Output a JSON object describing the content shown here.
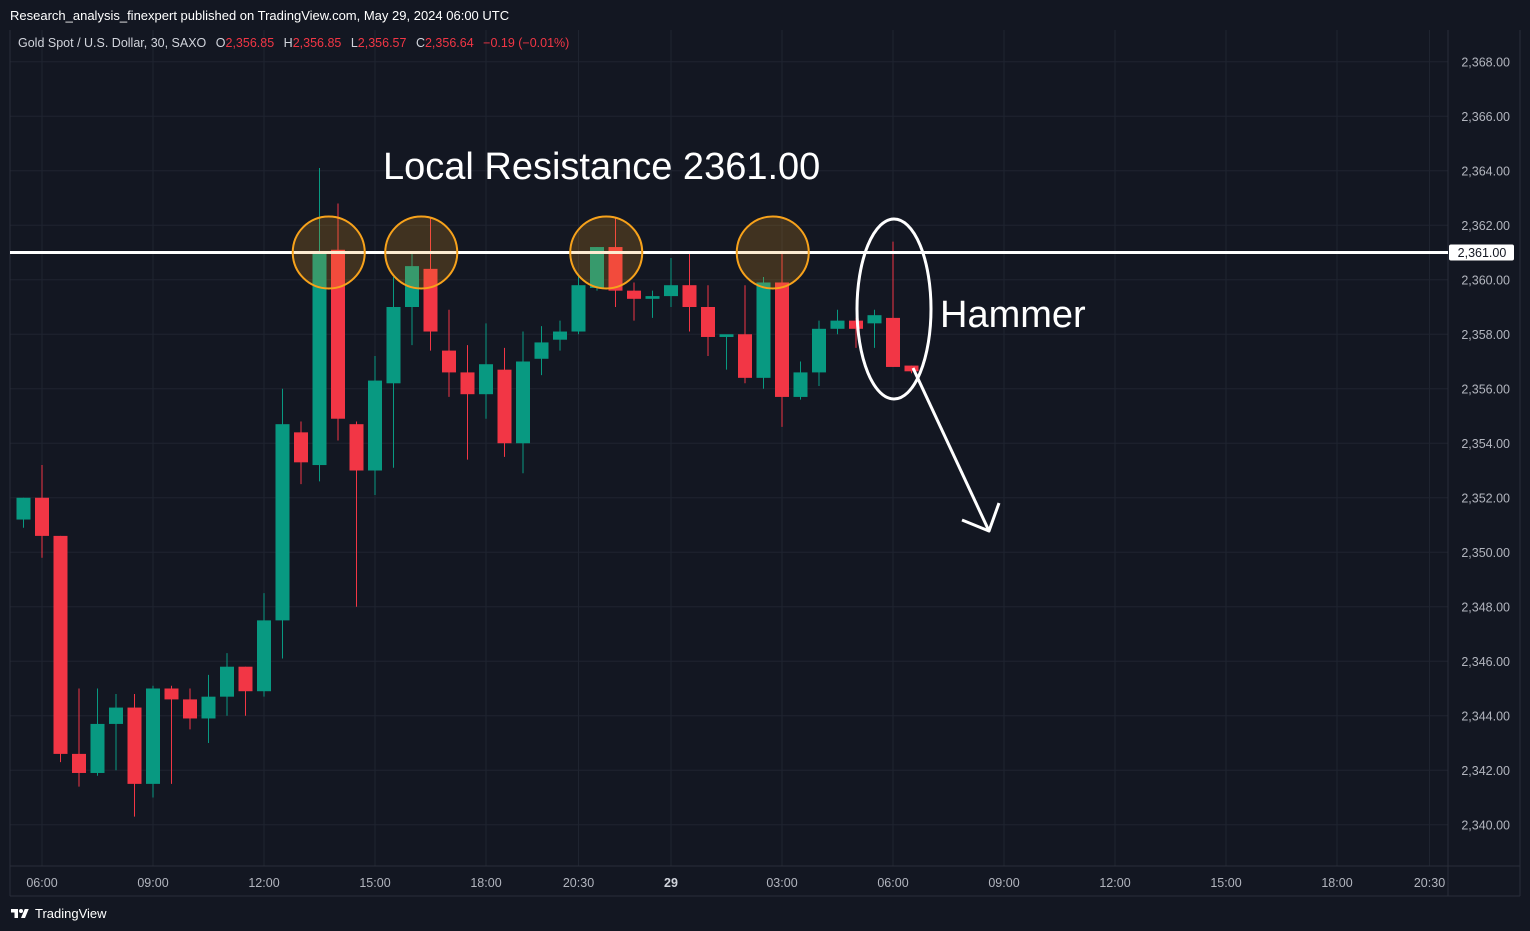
{
  "header": {
    "publisher": "Research_analysis_finexpert published on TradingView.com, May 29, 2024 06:00 UTC"
  },
  "legend": {
    "symbol": "Gold Spot / U.S. Dollar, 30, SAXO",
    "o_label": "O",
    "o_value": "2,356.85",
    "h_label": "H",
    "h_value": "2,356.85",
    "l_label": "L",
    "l_value": "2,356.57",
    "c_label": "C",
    "c_value": "2,356.64",
    "change": "−0.19 (−0.01%)"
  },
  "footer": {
    "brand": "TradingView"
  },
  "colors": {
    "up": "#089981",
    "down": "#f23645",
    "background": "#131722",
    "resistance": "#ffffff",
    "circle": "#f7a21b"
  },
  "chart_data": {
    "type": "candlestick",
    "title": "",
    "ylim": [
      2339,
      2369
    ],
    "y_ticks": [
      "2,368.00",
      "2,366.00",
      "2,364.00",
      "2,362.00",
      "2,360.00",
      "2,358.00",
      "2,356.00",
      "2,354.00",
      "2,352.00",
      "2,350.00",
      "2,348.00",
      "2,346.00",
      "2,344.00",
      "2,342.00",
      "2,340.00"
    ],
    "y_tick_values": [
      2368,
      2366,
      2364,
      2362,
      2360,
      2358,
      2356,
      2354,
      2352,
      2350,
      2348,
      2346,
      2344,
      2342,
      2340
    ],
    "x_ticks": [
      {
        "label": "06:00",
        "bar": 1
      },
      {
        "label": "09:00",
        "bar": 7
      },
      {
        "label": "12:00",
        "bar": 13
      },
      {
        "label": "15:00",
        "bar": 19
      },
      {
        "label": "18:00",
        "bar": 25
      },
      {
        "label": "20:30",
        "bar": 30
      },
      {
        "label": "29",
        "bar": 35,
        "bold": true
      },
      {
        "label": "03:00",
        "bar": 41
      },
      {
        "label": "06:00",
        "bar": 47
      },
      {
        "label": "09:00",
        "bar": 53
      },
      {
        "label": "12:00",
        "bar": 59
      },
      {
        "label": "15:00",
        "bar": 65
      },
      {
        "label": "18:00",
        "bar": 71
      },
      {
        "label": "20:30",
        "bar": 76
      }
    ],
    "candles": [
      {
        "o": 2351.2,
        "h": 2352.0,
        "l": 2350.9,
        "c": 2352.0
      },
      {
        "o": 2352.0,
        "h": 2353.2,
        "l": 2349.8,
        "c": 2350.6
      },
      {
        "o": 2350.6,
        "h": 2350.6,
        "l": 2342.3,
        "c": 2342.6
      },
      {
        "o": 2342.6,
        "h": 2345.0,
        "l": 2341.4,
        "c": 2341.9
      },
      {
        "o": 2341.9,
        "h": 2345.0,
        "l": 2341.8,
        "c": 2343.7
      },
      {
        "o": 2343.7,
        "h": 2344.8,
        "l": 2342.0,
        "c": 2344.3
      },
      {
        "o": 2344.3,
        "h": 2344.8,
        "l": 2340.3,
        "c": 2341.5
      },
      {
        "o": 2341.5,
        "h": 2345.1,
        "l": 2341.0,
        "c": 2345.0
      },
      {
        "o": 2345.0,
        "h": 2345.1,
        "l": 2341.5,
        "c": 2344.6
      },
      {
        "o": 2344.6,
        "h": 2345.0,
        "l": 2343.5,
        "c": 2343.9
      },
      {
        "o": 2343.9,
        "h": 2345.5,
        "l": 2343.0,
        "c": 2344.7
      },
      {
        "o": 2344.7,
        "h": 2346.3,
        "l": 2344.0,
        "c": 2345.8
      },
      {
        "o": 2345.8,
        "h": 2345.8,
        "l": 2344.0,
        "c": 2344.9
      },
      {
        "o": 2344.9,
        "h": 2348.5,
        "l": 2344.7,
        "c": 2347.5
      },
      {
        "o": 2347.5,
        "h": 2356.0,
        "l": 2346.1,
        "c": 2354.7
      },
      {
        "o": 2354.4,
        "h": 2354.8,
        "l": 2352.5,
        "c": 2353.3
      },
      {
        "o": 2353.2,
        "h": 2364.1,
        "l": 2352.6,
        "c": 2361.0
      },
      {
        "o": 2361.1,
        "h": 2362.8,
        "l": 2354.1,
        "c": 2354.9
      },
      {
        "o": 2354.7,
        "h": 2354.8,
        "l": 2348.0,
        "c": 2353.0
      },
      {
        "o": 2353.0,
        "h": 2357.2,
        "l": 2352.1,
        "c": 2356.3
      },
      {
        "o": 2356.2,
        "h": 2360.1,
        "l": 2353.1,
        "c": 2359.0
      },
      {
        "o": 2359.0,
        "h": 2361.0,
        "l": 2357.6,
        "c": 2360.5
      },
      {
        "o": 2360.4,
        "h": 2362.3,
        "l": 2357.4,
        "c": 2358.1
      },
      {
        "o": 2357.4,
        "h": 2358.9,
        "l": 2355.7,
        "c": 2356.6
      },
      {
        "o": 2356.6,
        "h": 2357.6,
        "l": 2353.4,
        "c": 2355.8
      },
      {
        "o": 2355.8,
        "h": 2358.4,
        "l": 2354.9,
        "c": 2356.9
      },
      {
        "o": 2356.7,
        "h": 2357.5,
        "l": 2353.5,
        "c": 2354.0
      },
      {
        "o": 2354.0,
        "h": 2358.1,
        "l": 2352.9,
        "c": 2357.0
      },
      {
        "o": 2357.1,
        "h": 2358.3,
        "l": 2356.5,
        "c": 2357.7
      },
      {
        "o": 2357.8,
        "h": 2358.5,
        "l": 2357.4,
        "c": 2358.1
      },
      {
        "o": 2358.1,
        "h": 2360.2,
        "l": 2358.0,
        "c": 2359.8
      },
      {
        "o": 2359.7,
        "h": 2361.2,
        "l": 2359.6,
        "c": 2361.2
      },
      {
        "o": 2361.2,
        "h": 2362.3,
        "l": 2359.0,
        "c": 2359.6
      },
      {
        "o": 2359.6,
        "h": 2359.9,
        "l": 2358.5,
        "c": 2359.3
      },
      {
        "o": 2359.3,
        "h": 2359.6,
        "l": 2358.6,
        "c": 2359.4
      },
      {
        "o": 2359.4,
        "h": 2360.8,
        "l": 2359.0,
        "c": 2359.8
      },
      {
        "o": 2359.8,
        "h": 2361.0,
        "l": 2358.1,
        "c": 2359.0
      },
      {
        "o": 2359.0,
        "h": 2359.8,
        "l": 2357.2,
        "c": 2357.9
      },
      {
        "o": 2357.9,
        "h": 2357.9,
        "l": 2356.7,
        "c": 2358.0
      },
      {
        "o": 2358.0,
        "h": 2359.8,
        "l": 2356.2,
        "c": 2356.4
      },
      {
        "o": 2356.4,
        "h": 2360.1,
        "l": 2356.0,
        "c": 2359.9
      },
      {
        "o": 2359.9,
        "h": 2361.0,
        "l": 2354.6,
        "c": 2355.7
      },
      {
        "o": 2355.7,
        "h": 2357.0,
        "l": 2355.6,
        "c": 2356.6
      },
      {
        "o": 2356.6,
        "h": 2358.5,
        "l": 2356.1,
        "c": 2358.2
      },
      {
        "o": 2358.2,
        "h": 2358.9,
        "l": 2358.0,
        "c": 2358.5
      },
      {
        "o": 2358.5,
        "h": 2358.6,
        "l": 2357.5,
        "c": 2358.2
      },
      {
        "o": 2358.4,
        "h": 2358.9,
        "l": 2357.5,
        "c": 2358.7
      },
      {
        "o": 2358.6,
        "h": 2361.4,
        "l": 2356.8,
        "c": 2356.8
      },
      {
        "o": 2356.85,
        "h": 2356.85,
        "l": 2356.57,
        "c": 2356.64
      }
    ],
    "resistance": {
      "value": 2361.0,
      "label": "2,361.00"
    },
    "circled_bars": [
      16.5,
      21.5,
      31.5,
      40.5
    ],
    "hammer_bar": 47,
    "annotations": {
      "resistance_note": "Local Resistance 2361.00",
      "hammer_note": "Hammer"
    }
  }
}
